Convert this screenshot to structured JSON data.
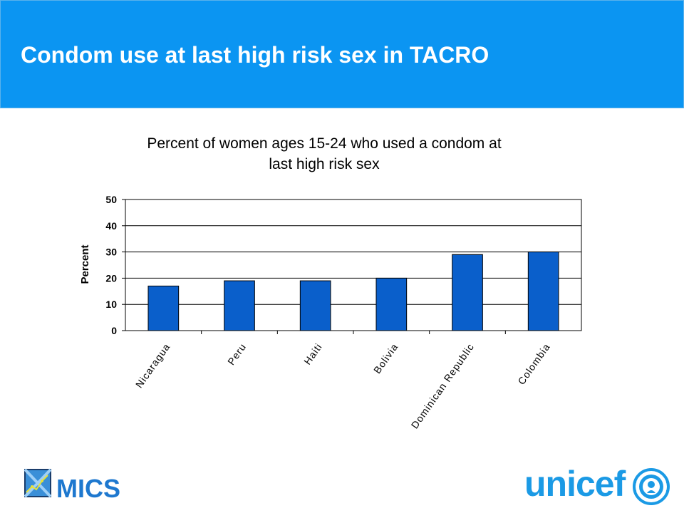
{
  "slide": {
    "title": "Condom use at last high risk sex in TACRO"
  },
  "chart_data": {
    "type": "bar",
    "title": "Percent of women ages 15-24 who used a condom at last high risk sex",
    "title_lines": [
      "Percent of women ages 15-24 who used a condom at",
      "last high risk sex"
    ],
    "xlabel": "",
    "ylabel": "Percent",
    "categories": [
      "Nicaragua",
      "Peru",
      "Haiti",
      "Bolivia",
      "Dominican Republic",
      "Colombia"
    ],
    "values": [
      17,
      19,
      19,
      20,
      29,
      30
    ],
    "ylim": [
      0,
      50
    ],
    "yticks": [
      "0",
      "10",
      "20",
      "30",
      "40",
      "50"
    ],
    "grid": true,
    "legend": "none",
    "bar_color": "#0a5fcb"
  },
  "logos": {
    "mics": "MICS",
    "unicef": "unicef"
  },
  "colors": {
    "header": "#0b95f2",
    "unicef_blue": "#1b9ae5",
    "mics_blue": "#1e78cf"
  }
}
